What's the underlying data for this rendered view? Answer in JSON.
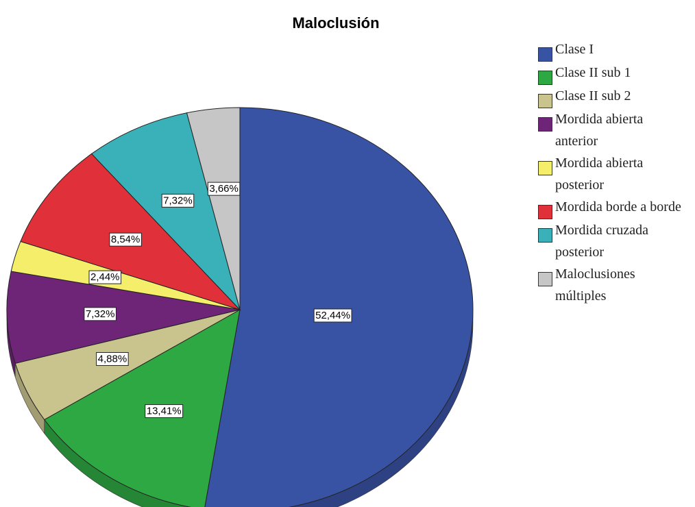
{
  "chart_data": {
    "type": "pie",
    "title": "Maloclusión",
    "categories": [
      "Clase I",
      "Clase II sub 1",
      "Clase II sub 2",
      "Mordida abierta anterior",
      "Mordida abierta posterior",
      "Mordida borde a borde",
      "Mordida cruzada posterior",
      "Maloclusiones múltiples"
    ],
    "values": [
      52.44,
      13.41,
      4.88,
      7.32,
      2.44,
      8.54,
      7.32,
      3.66
    ],
    "value_labels": [
      "52,44%",
      "13,41%",
      "4,88%",
      "7,32%",
      "2,44%",
      "8,54%",
      "7,32%",
      "3,66%"
    ],
    "colors": [
      "#3953a4",
      "#2ea843",
      "#c9c38e",
      "#6f2577",
      "#f4ee6a",
      "#e0313a",
      "#3ab1b8",
      "#c6c6c6"
    ],
    "legend": "right"
  }
}
